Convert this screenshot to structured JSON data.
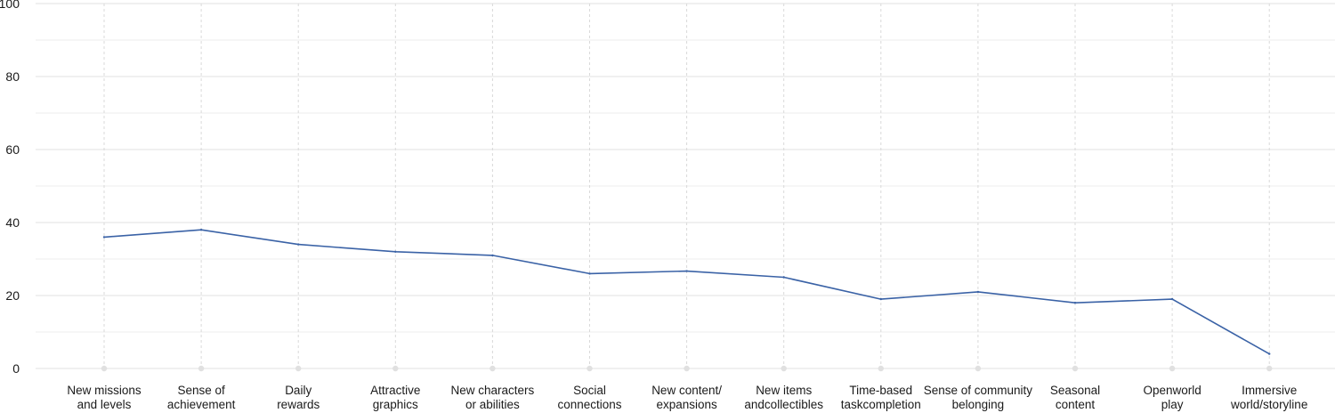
{
  "chart_data": {
    "type": "line",
    "categories": [
      [
        "New missions",
        "and levels"
      ],
      [
        "Sense of",
        "achievement"
      ],
      [
        "Daily",
        "rewards"
      ],
      [
        "Attractive",
        "graphics"
      ],
      [
        "New characters",
        "or abilities"
      ],
      [
        "Social",
        "connections"
      ],
      [
        "New content/",
        "expansions"
      ],
      [
        "New items",
        "andcollectibles"
      ],
      [
        "Time-based",
        "taskcompletion"
      ],
      [
        "Sense of community",
        "belonging"
      ],
      [
        "Seasonal",
        "content"
      ],
      [
        "Openworld",
        "play"
      ],
      [
        "Immersive",
        "world/storyline"
      ]
    ],
    "series": [
      {
        "values": [
          36,
          38,
          34,
          32,
          31,
          26,
          26.7,
          25,
          19,
          21,
          18,
          19,
          4
        ]
      }
    ],
    "ylim": [
      0,
      100
    ],
    "yticks": [
      0,
      20,
      40,
      60,
      80,
      100
    ],
    "grid": true,
    "colors": {
      "line": "#3a62a6",
      "grid": "#e6e6e6",
      "vgrid": "#d9d9d9",
      "marker": "#e0e0e0"
    }
  }
}
